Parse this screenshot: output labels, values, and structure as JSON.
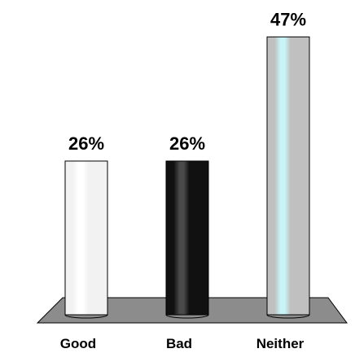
{
  "chart_data": {
    "type": "bar",
    "categories": [
      "Good",
      "Bad",
      "Neither"
    ],
    "values": [
      26,
      26,
      47
    ],
    "value_labels": [
      "26%",
      "26%",
      "47%"
    ],
    "ylim": [
      0,
      50
    ],
    "grid": false,
    "legend": "none",
    "bar_style": "3d-cylinder",
    "bar_colors": [
      "#f2f2f2",
      "#111111",
      "#c0c0c0"
    ],
    "bar_highlight_colors": [
      "#ffffff",
      "#4a4a4a",
      "#c8f4f8"
    ],
    "floor_color": "#8c8c8c"
  }
}
